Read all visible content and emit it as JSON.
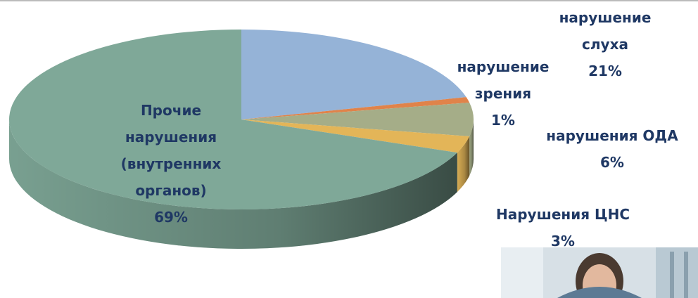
{
  "chart_data": {
    "type": "pie3d",
    "categories": [
      "нарушение слуха",
      "нарушение зрения",
      "нарушения ОДА",
      "Нарушения ЦНС",
      "Прочие нарушения (внутренних органов)"
    ],
    "values": [
      21,
      1,
      6,
      3,
      69
    ],
    "value_labels": [
      "21%",
      "1%",
      "6%",
      "3%",
      "69%"
    ],
    "colors": [
      "#95b3d7",
      "#e0834a",
      "#a5ad88",
      "#e3b558",
      "#7fa898"
    ]
  }
}
